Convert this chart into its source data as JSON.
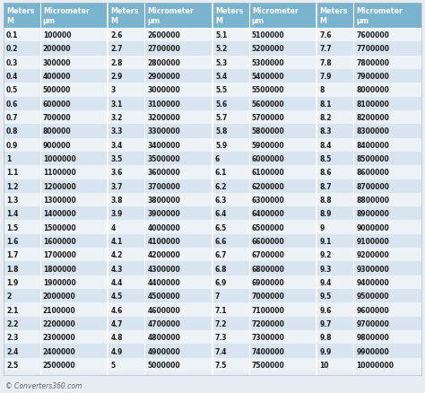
{
  "background_color": "#e8edf4",
  "header_bg": "#7ab3ce",
  "header_text_color": "#ffffff",
  "row_light_bg": "#edf2f7",
  "row_dark_bg": "#d8e4ef",
  "text_color": "#1a1a1a",
  "footer": "© Converters360.com",
  "col_header_1": "Meters\nM",
  "col_header_2": "Micrometer\nμm",
  "columns": [
    {
      "meters": [
        0.1,
        0.2,
        0.3,
        0.4,
        0.5,
        0.6,
        0.7,
        0.8,
        0.9,
        1,
        1.1,
        1.2,
        1.3,
        1.4,
        1.5,
        1.6,
        1.7,
        1.8,
        1.9,
        2,
        2.1,
        2.2,
        2.3,
        2.4,
        2.5
      ],
      "micrometers": [
        "100000",
        "200000",
        "300000",
        "400000",
        "500000",
        "600000",
        "700000",
        "800000",
        "900000",
        "1000000",
        "1100000",
        "1200000",
        "1300000",
        "1400000",
        "1500000",
        "1600000",
        "1700000",
        "1800000",
        "1900000",
        "2000000",
        "2100000",
        "2200000",
        "2300000",
        "2400000",
        "2500000"
      ]
    },
    {
      "meters": [
        2.6,
        2.7,
        2.8,
        2.9,
        3,
        3.1,
        3.2,
        3.3,
        3.4,
        3.5,
        3.6,
        3.7,
        3.8,
        3.9,
        4,
        4.1,
        4.2,
        4.3,
        4.4,
        4.5,
        4.6,
        4.7,
        4.8,
        4.9,
        5
      ],
      "micrometers": [
        "2600000",
        "2700000",
        "2800000",
        "2900000",
        "3000000",
        "3100000",
        "3200000",
        "3300000",
        "3400000",
        "3500000",
        "3600000",
        "3700000",
        "3800000",
        "3900000",
        "4000000",
        "4100000",
        "4200000",
        "4300000",
        "4400000",
        "4500000",
        "4600000",
        "4700000",
        "4800000",
        "4900000",
        "5000000"
      ]
    },
    {
      "meters": [
        5.1,
        5.2,
        5.3,
        5.4,
        5.5,
        5.6,
        5.7,
        5.8,
        5.9,
        6,
        6.1,
        6.2,
        6.3,
        6.4,
        6.5,
        6.6,
        6.7,
        6.8,
        6.9,
        7,
        7.1,
        7.2,
        7.3,
        7.4,
        7.5
      ],
      "micrometers": [
        "5100000",
        "5200000",
        "5300000",
        "5400000",
        "5500000",
        "5600000",
        "5700000",
        "5800000",
        "5900000",
        "6000000",
        "6100000",
        "6200000",
        "6300000",
        "6400000",
        "6500000",
        "6600000",
        "6700000",
        "6800000",
        "6900000",
        "7000000",
        "7100000",
        "7200000",
        "7300000",
        "7400000",
        "7500000"
      ]
    },
    {
      "meters": [
        7.6,
        7.7,
        7.8,
        7.9,
        8,
        8.1,
        8.2,
        8.3,
        8.4,
        8.5,
        8.6,
        8.7,
        8.8,
        8.9,
        9,
        9.1,
        9.2,
        9.3,
        9.4,
        9.5,
        9.6,
        9.7,
        9.8,
        9.9,
        10
      ],
      "micrometers": [
        "7600000",
        "7700000",
        "7800000",
        "7900000",
        "8000000",
        "8100000",
        "8200000",
        "8300000",
        "8400000",
        "8500000",
        "8600000",
        "8700000",
        "8800000",
        "8900000",
        "9000000",
        "9100000",
        "9200000",
        "9300000",
        "9400000",
        "9500000",
        "9600000",
        "9700000",
        "9800000",
        "9900000",
        "10000000"
      ]
    }
  ]
}
